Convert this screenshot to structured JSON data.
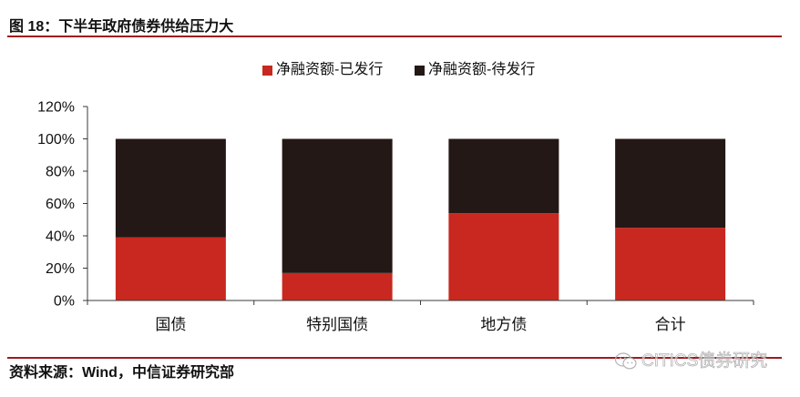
{
  "title": "图 18：下半年政府债券供给压力大",
  "source": "资料来源：Wind，中信证券研究部",
  "watermark": "CITICS债券研究",
  "colors": {
    "series": [
      "#C8281F",
      "#231815"
    ],
    "rule": "#9E1C20",
    "axis": "#3a3a3a"
  },
  "chart_data": {
    "type": "bar",
    "stacked": true,
    "categories": [
      "国债",
      "特别国债",
      "地方债",
      "合计"
    ],
    "series": [
      {
        "name": "净融资额-已发行",
        "values": [
          39,
          17,
          54,
          45
        ]
      },
      {
        "name": "净融资额-待发行",
        "values": [
          61,
          83,
          46,
          55
        ]
      }
    ],
    "yticks": [
      0,
      20,
      40,
      60,
      80,
      100,
      120
    ],
    "ytick_labels": [
      "0%",
      "20%",
      "40%",
      "60%",
      "80%",
      "100%",
      "120%"
    ],
    "ylim": [
      0,
      120
    ],
    "xlabel": "",
    "ylabel": "",
    "legend": "top-center",
    "grid": false
  }
}
